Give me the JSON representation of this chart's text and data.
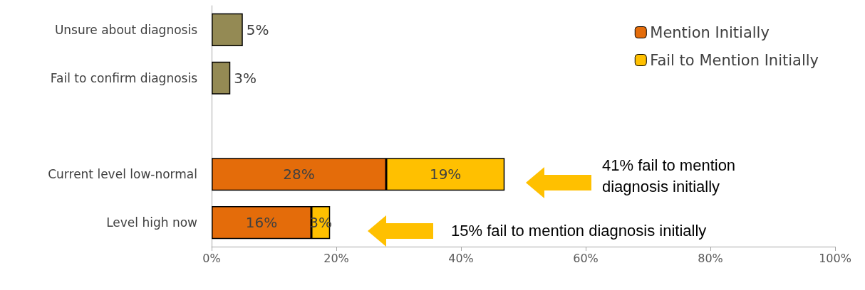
{
  "chart_data": {
    "type": "bar",
    "orientation": "horizontal",
    "stacked": true,
    "categories": [
      "Unsure about diagnosis",
      "Fail to confirm diagnosis",
      null,
      "Current level low-normal",
      "Level high now"
    ],
    "series": [
      {
        "color": "#948a54",
        "values": [
          5,
          3,
          null,
          null,
          null
        ],
        "value_labels": [
          "5%",
          "3%",
          null,
          null,
          null
        ]
      },
      {
        "name": "Mention Initially",
        "color": "#e46c0a",
        "values": [
          null,
          null,
          null,
          28,
          16
        ],
        "value_labels": [
          null,
          null,
          null,
          "28%",
          "16%"
        ]
      },
      {
        "name": "Fail to Mention Initially",
        "color": "#ffc000",
        "values": [
          null,
          null,
          null,
          19,
          3
        ],
        "value_labels": [
          null,
          null,
          null,
          "19%",
          "3%"
        ]
      }
    ],
    "xlim": [
      0,
      100
    ],
    "xticks": [
      {
        "value": 0,
        "label": "0%"
      },
      {
        "value": 20,
        "label": "20%"
      },
      {
        "value": 40,
        "label": "40%"
      },
      {
        "value": 60,
        "label": "60%"
      },
      {
        "value": 80,
        "label": "80%"
      },
      {
        "value": 100,
        "label": "100%"
      }
    ],
    "grid": false,
    "legend": "top right",
    "annotations": [
      "41% fail to mention diagnosis initially",
      "15% fail to mention diagnosis initially"
    ]
  }
}
